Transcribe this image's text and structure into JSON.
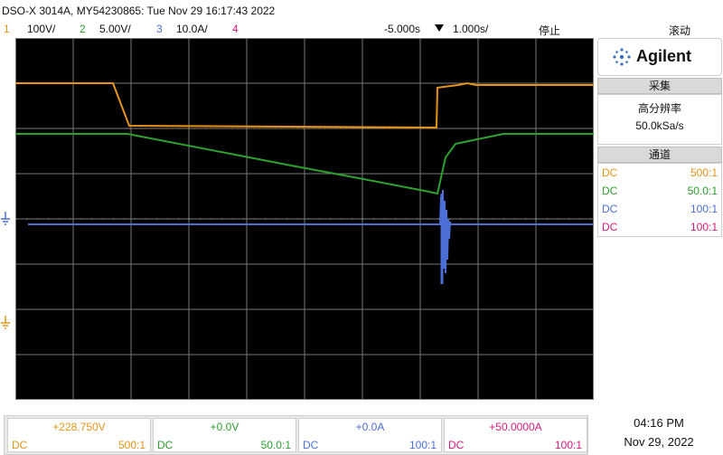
{
  "header": {
    "title": "DSO-X 3014A, MY54230865: Tue Nov 29 16:17:43 2022"
  },
  "channel_bar": {
    "ch1_num": "1",
    "ch1_scale": "100V/",
    "ch2_num": "2",
    "ch2_scale": "5.00V/",
    "ch3_num": "3",
    "ch3_scale": "10.0A/",
    "ch4_num": "4",
    "delay": "-5.000s",
    "timebase": "1.000s/",
    "run_state": "停止",
    "mode": "滚动"
  },
  "panel": {
    "brand": "Agilent",
    "acq_title": "采集",
    "acq_mode": "高分辨率",
    "sample_rate": "50.0kSa/s",
    "chan_title": "通道",
    "channels": [
      {
        "coupling": "DC",
        "probe": "500:1",
        "color": "#e69419"
      },
      {
        "coupling": "DC",
        "probe": "50.0:1",
        "color": "#2ea02e"
      },
      {
        "coupling": "DC",
        "probe": "100:1",
        "color": "#4b6fd6"
      },
      {
        "coupling": "DC",
        "probe": "100:1",
        "color": "#d8197c"
      }
    ]
  },
  "markers": {
    "ch1": "1",
    "ch2": "2"
  },
  "bottom": [
    {
      "offset": "+228.750V",
      "coupling": "DC",
      "probe": "500:1",
      "color": "#e69419"
    },
    {
      "offset": "+0.0V",
      "coupling": "DC",
      "probe": "50.0:1",
      "color": "#2ea02e"
    },
    {
      "offset": "+0.0A",
      "coupling": "DC",
      "probe": "100:1",
      "color": "#4b6fd6"
    },
    {
      "offset": "+50.0000A",
      "coupling": "DC",
      "probe": "100:1",
      "color": "#d8197c"
    }
  ],
  "clock": {
    "time": "04:16 PM",
    "date": "Nov 29, 2022"
  },
  "colors": {
    "ch1": "#e69419",
    "ch2": "#2ea02e",
    "ch3": "#4b6fd6",
    "ch4": "#d8197c",
    "screen_bg": "#000000",
    "grid": "#7a7a7a"
  }
}
